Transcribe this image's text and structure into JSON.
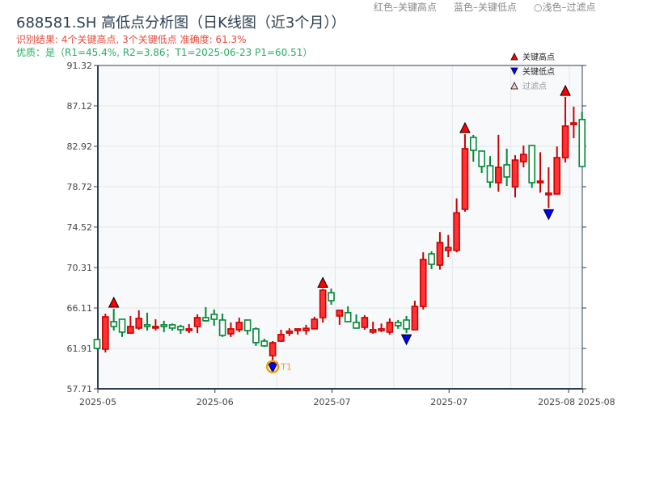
{
  "header": {
    "title": "688581.SH 高低点分析图（日K线图（近3个月））",
    "result_line": "识别结果: 4个关键高点, 3个关键低点  准确度: 61.3%",
    "quality_line": "优质：是（R1=45.4%, R2=3.86；T1=2025-06-23 P1=60.51）",
    "hint_red": "红色–关键高点",
    "hint_blue": "蓝色–关键低点",
    "hint_light": "○浅色–过滤点"
  },
  "colors": {
    "up": "#ff3333",
    "up_edge": "#cc0000",
    "down": "#008833",
    "high_marker": "#ff0000",
    "low_marker": "#0000ff",
    "t1": "#f39c12",
    "plot_bg": "#f7f9fb",
    "axis": "#2c3e50"
  },
  "chart_data": {
    "type": "candlestick",
    "ylim": [
      57.71,
      91.32
    ],
    "y_ticks": [
      "91.32",
      "87.12",
      "82.92",
      "78.72",
      "74.52",
      "70.31",
      "66.11",
      "61.91",
      "57.71"
    ],
    "x_ticks": [
      {
        "index": 0,
        "label": "2025-05"
      },
      {
        "index": 14,
        "label": "2025-06"
      },
      {
        "index": 28,
        "label": "2025-07"
      },
      {
        "index": 42,
        "label": "2025-07"
      },
      {
        "index": 56.3,
        "label": "2025-08"
      },
      {
        "index": 58,
        "label": "2025-08"
      }
    ],
    "grid": true,
    "legend": {
      "position": "top-right",
      "items": [
        {
          "label": "关键高点",
          "symbol": "triangle-up",
          "color": "#ff0000"
        },
        {
          "label": "关键低点",
          "symbol": "triangle-down",
          "color": "#0000ff"
        },
        {
          "label": "过滤点",
          "symbol": "triangle-up-light",
          "color": "#ffcccc"
        }
      ]
    },
    "ohlc": [
      [
        62.83,
        62.9,
        61.8,
        61.91
      ],
      [
        61.83,
        65.52,
        61.49,
        65.19
      ],
      [
        64.69,
        66.03,
        63.77,
        64.19
      ],
      [
        64.94,
        64.94,
        63.1,
        63.6
      ],
      [
        63.5,
        65.28,
        63.5,
        64.19
      ],
      [
        64.02,
        65.87,
        63.85,
        65.03
      ],
      [
        64.36,
        65.62,
        63.77,
        64.19
      ],
      [
        64.02,
        64.94,
        63.77,
        64.19
      ],
      [
        64.36,
        64.78,
        63.6,
        64.19
      ],
      [
        64.36,
        64.5,
        63.77,
        64.02
      ],
      [
        64.19,
        64.36,
        63.43,
        63.85
      ],
      [
        63.77,
        64.44,
        63.5,
        63.94
      ],
      [
        64.19,
        65.45,
        63.5,
        65.11
      ],
      [
        65.11,
        66.2,
        64.7,
        64.78
      ],
      [
        65.45,
        65.95,
        64.27,
        64.94
      ],
      [
        64.86,
        65.53,
        63.1,
        63.26
      ],
      [
        63.43,
        64.61,
        63.1,
        63.94
      ],
      [
        63.85,
        65.11,
        63.6,
        64.61
      ],
      [
        64.86,
        64.86,
        63.35,
        63.77
      ],
      [
        63.94,
        64.1,
        62.17,
        62.51
      ],
      [
        62.67,
        62.92,
        62.08,
        62.17
      ],
      [
        61.16,
        62.67,
        60.6,
        62.5
      ],
      [
        62.67,
        63.85,
        62.6,
        63.35
      ],
      [
        63.5,
        64.0,
        63.2,
        63.7
      ],
      [
        63.77,
        64.0,
        63.35,
        63.94
      ],
      [
        63.77,
        64.36,
        63.35,
        64.0
      ],
      [
        63.94,
        65.2,
        63.94,
        64.94
      ],
      [
        65.11,
        68.1,
        64.6,
        67.96
      ],
      [
        67.7,
        68.13,
        66.45,
        66.87
      ],
      [
        65.28,
        65.87,
        64.36,
        65.87
      ],
      [
        65.62,
        66.28,
        64.69,
        64.69
      ],
      [
        64.61,
        65.45,
        63.94,
        64.02
      ],
      [
        64.1,
        65.36,
        63.85,
        65.11
      ],
      [
        63.6,
        64.69,
        63.43,
        63.85
      ],
      [
        63.85,
        64.5,
        63.6,
        63.94
      ],
      [
        63.6,
        65.03,
        63.35,
        64.61
      ],
      [
        64.61,
        64.86,
        63.94,
        64.27
      ],
      [
        64.86,
        65.28,
        63.5,
        63.94
      ],
      [
        63.85,
        66.87,
        63.85,
        66.28
      ],
      [
        66.28,
        71.9,
        65.95,
        71.15
      ],
      [
        71.74,
        72.0,
        70.15,
        70.65
      ],
      [
        70.57,
        74.0,
        70.1,
        72.92
      ],
      [
        72.1,
        73.7,
        71.4,
        72.4
      ],
      [
        72.1,
        77.5,
        71.9,
        76.0
      ],
      [
        76.37,
        84.18,
        76.12,
        82.67
      ],
      [
        83.84,
        84.1,
        81.32,
        82.5
      ],
      [
        82.42,
        82.5,
        80.15,
        80.82
      ],
      [
        80.9,
        81.9,
        78.6,
        79.2
      ],
      [
        79.14,
        84.1,
        78.2,
        80.73
      ],
      [
        80.99,
        82.67,
        78.8,
        79.73
      ],
      [
        78.7,
        82.0,
        77.6,
        81.49
      ],
      [
        81.32,
        83.0,
        80.73,
        82.08
      ],
      [
        83.0,
        83.0,
        78.6,
        79.14
      ],
      [
        79.2,
        82.3,
        78.1,
        79.3
      ],
      [
        77.9,
        80.73,
        76.5,
        78.05
      ],
      [
        77.96,
        82.9,
        77.96,
        81.74
      ],
      [
        81.74,
        88.04,
        81.24,
        85.02
      ],
      [
        85.18,
        87.04,
        83.76,
        85.35
      ],
      [
        85.7,
        86.5,
        80.8,
        80.82
      ]
    ],
    "key_highs": [
      2,
      27,
      44,
      56
    ],
    "key_lows": [
      21,
      37,
      54
    ],
    "annotation": {
      "index": 21,
      "label": "T1",
      "price": 60.51
    }
  }
}
